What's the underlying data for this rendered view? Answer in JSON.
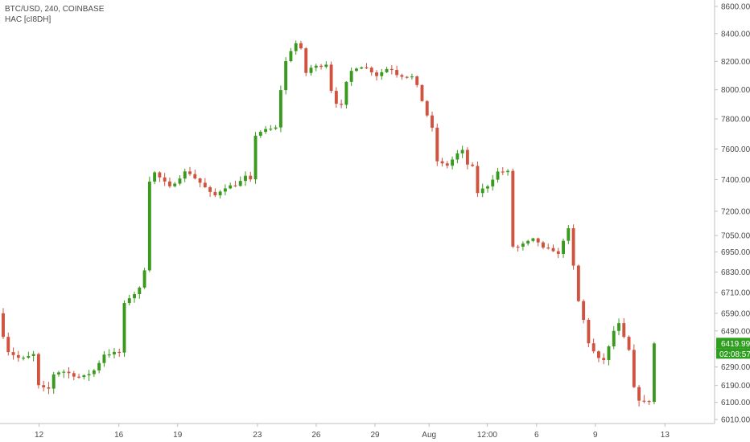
{
  "legend": {
    "symbol_line": "BTC/USD, 240, COINBASE",
    "indicator_line": "HAC [cI8DH]"
  },
  "price_tag": {
    "price": "6419.99",
    "countdown": "02:08:57",
    "value": 6419.99,
    "color": "#2e9e1e"
  },
  "colors": {
    "up": "#3a9a1d",
    "down": "#d0533f",
    "axis": "#bfbfbf",
    "text": "#4a4a4a"
  },
  "chart_data": {
    "type": "candlestick",
    "title": "",
    "xlabel": "",
    "ylabel": "",
    "ylim": [
      5960,
      8650
    ],
    "xlim": [
      0,
      100
    ],
    "grid": false,
    "y_scale": "log",
    "y_ticks": [
      "8600.00",
      "8400.00",
      "8200.00",
      "8000.00",
      "7800.00",
      "7600.00",
      "7400.00",
      "7200.00",
      "7050.00",
      "6950.00",
      "6830.00",
      "6710.00",
      "6590.00",
      "6490.00",
      "6390.00",
      "6290.00",
      "6190.00",
      "6100.00",
      "6010.00"
    ],
    "y_tick_values": [
      8600,
      8400,
      8200,
      8000,
      7800,
      7600,
      7400,
      7200,
      7050,
      6950,
      6830,
      6710,
      6590,
      6490,
      6390,
      6290,
      6190,
      6100,
      6010
    ],
    "x_ticks": [
      "12",
      "16",
      "19",
      "23",
      "26",
      "29",
      "Aug",
      "12:00",
      "6",
      "9",
      "13"
    ],
    "x_tick_positions": [
      5.3,
      17.1,
      25.8,
      37.6,
      46.3,
      55.0,
      63.0,
      71.6,
      78.9,
      87.6,
      97.9
    ],
    "anchors": [
      [
        0,
        6590
      ],
      [
        0.6,
        6390
      ],
      [
        3,
        6330
      ],
      [
        5,
        6360
      ],
      [
        5.4,
        6190
      ],
      [
        7,
        6160
      ],
      [
        7.7,
        6250
      ],
      [
        9,
        6270
      ],
      [
        12,
        6230
      ],
      [
        14.2,
        6280
      ],
      [
        15,
        6360
      ],
      [
        17.8,
        6370
      ],
      [
        17.9,
        6620
      ],
      [
        19,
        6680
      ],
      [
        20,
        6710
      ],
      [
        21.2,
        6760
      ],
      [
        21.7,
        7340
      ],
      [
        22.4,
        7460
      ],
      [
        25,
        7350
      ],
      [
        27.5,
        7460
      ],
      [
        30,
        7360
      ],
      [
        31.5,
        7290
      ],
      [
        33,
        7350
      ],
      [
        35,
        7370
      ],
      [
        36.5,
        7430
      ],
      [
        37,
        7390
      ],
      [
        37.3,
        7680
      ],
      [
        38.6,
        7720
      ],
      [
        40.8,
        7740
      ],
      [
        41.3,
        7960
      ],
      [
        42,
        8180
      ],
      [
        43.5,
        8340
      ],
      [
        44.5,
        8280
      ],
      [
        45.2,
        8110
      ],
      [
        46,
        8160
      ],
      [
        47.5,
        8170
      ],
      [
        48.6,
        8190
      ],
      [
        49,
        7930
      ],
      [
        50.7,
        7880
      ],
      [
        51.3,
        8110
      ],
      [
        53,
        8170
      ],
      [
        54.3,
        8150
      ],
      [
        55.6,
        8100
      ],
      [
        57.5,
        8160
      ],
      [
        58.8,
        8100
      ],
      [
        61,
        8090
      ],
      [
        61.8,
        8000
      ],
      [
        62.8,
        7860
      ],
      [
        64.1,
        7700
      ],
      [
        64.6,
        7510
      ],
      [
        66,
        7490
      ],
      [
        67,
        7540
      ],
      [
        68.2,
        7600
      ],
      [
        69,
        7500
      ],
      [
        69.8,
        7480
      ],
      [
        70.3,
        7310
      ],
      [
        72,
        7360
      ],
      [
        73.5,
        7450
      ],
      [
        75.2,
        7450
      ],
      [
        75.8,
        6960
      ],
      [
        76.5,
        6980
      ],
      [
        79,
        7030
      ],
      [
        79.5,
        7010
      ],
      [
        80.2,
        6970
      ],
      [
        82,
        6960
      ],
      [
        82.9,
        6910
      ],
      [
        83.4,
        7080
      ],
      [
        84.3,
        7090
      ],
      [
        85,
        6720
      ],
      [
        86,
        6590
      ],
      [
        86.9,
        6430
      ],
      [
        87.6,
        6380
      ],
      [
        88.5,
        6330
      ],
      [
        89.5,
        6330
      ],
      [
        90.5,
        6480
      ],
      [
        91.7,
        6540
      ],
      [
        92.3,
        6430
      ],
      [
        93.2,
        6360
      ],
      [
        93.8,
        6130
      ],
      [
        95.2,
        6100
      ],
      [
        96.1,
        6110
      ],
      [
        96.3,
        6419.99
      ]
    ],
    "candle_count": 130,
    "seed": 7,
    "last_close": 6419.99
  }
}
